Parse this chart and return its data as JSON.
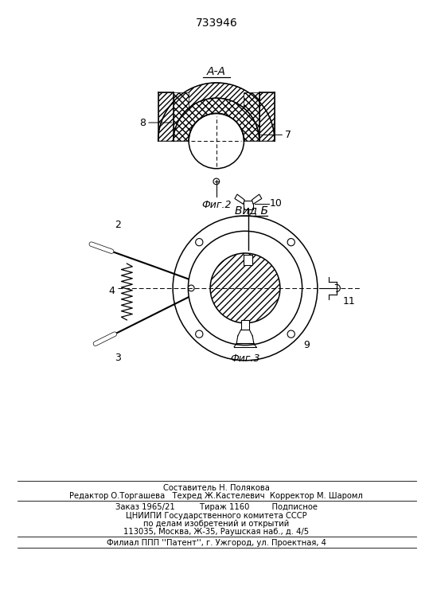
{
  "patent_number": "733946",
  "bg_color": "#ffffff",
  "line_color": "#000000"
}
